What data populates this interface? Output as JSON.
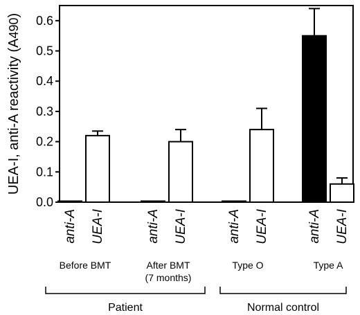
{
  "chart_data": {
    "type": "bar",
    "title": "",
    "ylabel": "UEA-I, anti-A reactivity (A",
    "ylabel_subscript": "490",
    "ylabel_close": ")",
    "ylim": [
      0,
      0.65
    ],
    "yticks": [
      "0.0",
      "0.1",
      "0.2",
      "0.3",
      "0.4",
      "0.5",
      "0.6"
    ],
    "grid": false,
    "categories": [
      "anti-A",
      "UEA-I",
      "anti-A",
      "UEA-I",
      "anti-A",
      "UEA-I",
      "anti-A",
      "UEA-I"
    ],
    "values": [
      0.0,
      0.22,
      0.0,
      0.2,
      0.0,
      0.24,
      0.55,
      0.06
    ],
    "errors": [
      0.0,
      0.015,
      0.0,
      0.04,
      0.0,
      0.07,
      0.09,
      0.02
    ],
    "fills": [
      "#ffffff",
      "#ffffff",
      "#ffffff",
      "#ffffff",
      "#ffffff",
      "#ffffff",
      "#000000",
      "#ffffff"
    ],
    "groups": [
      {
        "label": [
          "Before BMT"
        ]
      },
      {
        "label": [
          "After BMT",
          "(7 months)"
        ]
      },
      {
        "label": [
          "Type O"
        ]
      },
      {
        "label": [
          "Type A"
        ]
      }
    ],
    "supergroups": [
      {
        "label": "Patient",
        "groups": [
          0,
          1
        ]
      },
      {
        "label": "Normal control",
        "groups": [
          2,
          3
        ]
      }
    ]
  }
}
